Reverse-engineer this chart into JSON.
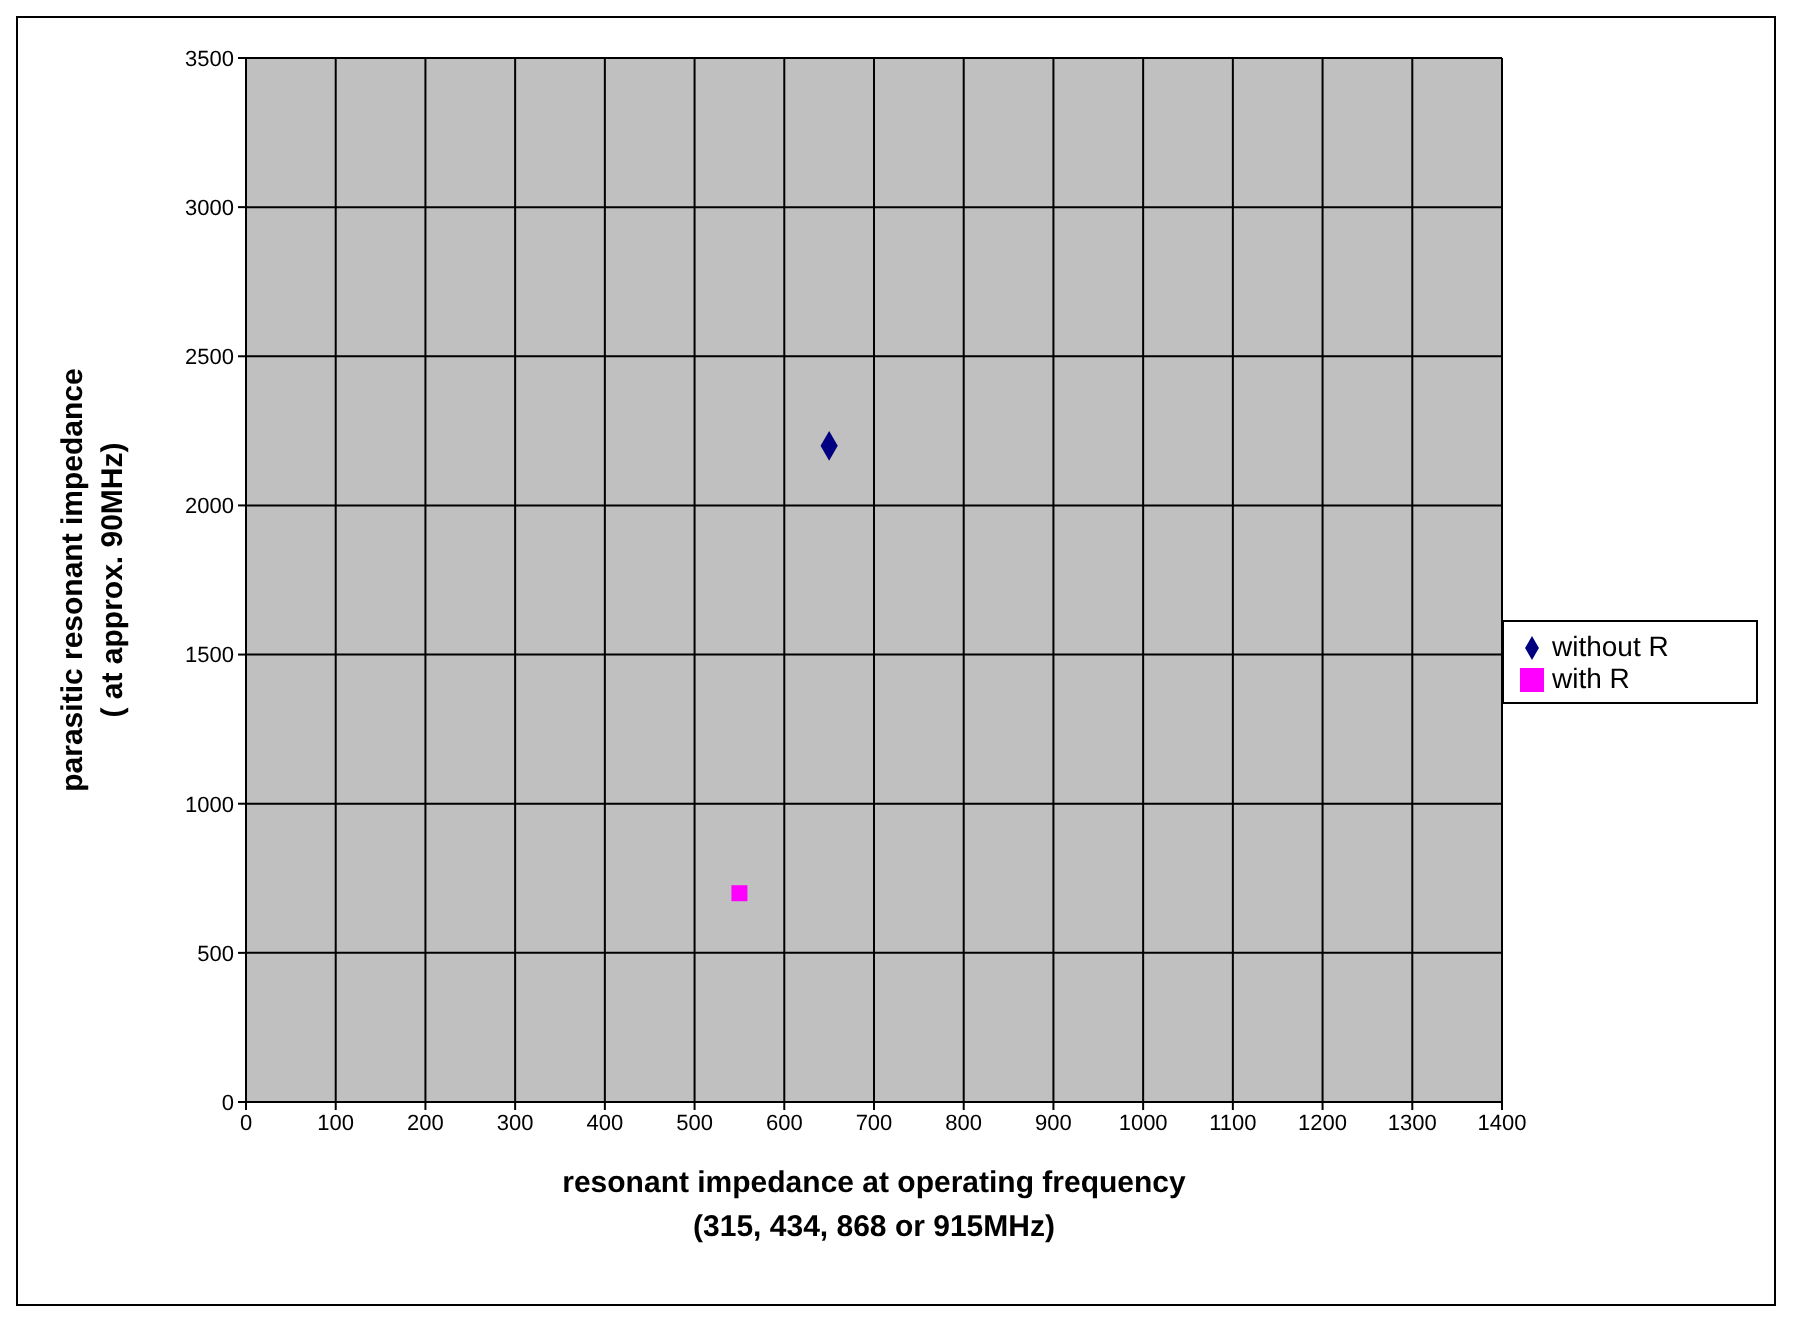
{
  "chart_data": {
    "type": "scatter",
    "xlabel": "resonant impedance at operating frequency\n(315, 434, 868 or 915MHz)",
    "ylabel": "parasitic resonant impedance\n( at approx. 90MHz)",
    "xlim": [
      0,
      1400
    ],
    "xticks": [
      0,
      100,
      200,
      300,
      400,
      500,
      600,
      700,
      800,
      900,
      1000,
      1100,
      1200,
      1300,
      1400
    ],
    "ylim": [
      0,
      3500
    ],
    "yticks": [
      0,
      500,
      1000,
      1500,
      2000,
      2500,
      3000,
      3500
    ],
    "grid": true,
    "legend": "right",
    "series": [
      {
        "name": "without R",
        "color": "#000080",
        "marker": "diamond",
        "x": [
          650
        ],
        "values": [
          2200
        ]
      },
      {
        "name": "with R",
        "color": "#ff00ff",
        "marker": "square",
        "x": [
          550
        ],
        "values": [
          700
        ]
      }
    ]
  }
}
